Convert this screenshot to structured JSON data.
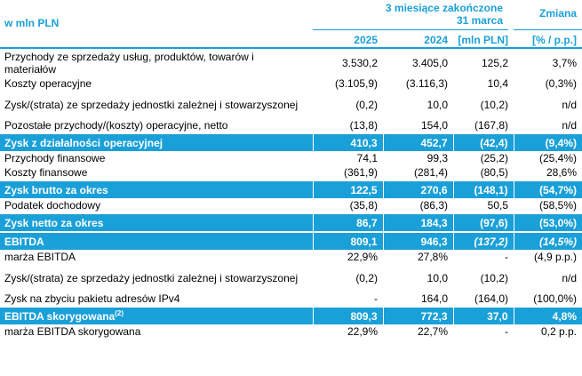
{
  "header": {
    "caption": "w mln PLN",
    "period_line1": "3 miesiące zakończone",
    "period_line2": "31 marca",
    "change_label": "Zmiana",
    "col_2025": "2025",
    "col_2024": "2024",
    "col_mln": "[mln PLN]",
    "col_pct": "[% / p.p.]"
  },
  "rows": [
    {
      "label": "Przychody ze sprzedaży usług, produktów, towarów i materiałów",
      "v2025": "3.530,2",
      "v2024": "3.405,0",
      "mln": "125,2",
      "pct": "3,7%"
    },
    {
      "label": "Koszty operacyjne",
      "v2025": "(3.105,9)",
      "v2024": "(3.116,3)",
      "mln": "10,4",
      "pct": "(0,3%)"
    },
    {
      "label": "Zysk/(strata) ze sprzedaży jednostki zależnej i stowarzyszonej",
      "v2025": "(0,2)",
      "v2024": "10,0",
      "mln": "(10,2)",
      "pct": "n/d"
    },
    {
      "label": "Pozostałe przychody/(koszty) operacyjne, netto",
      "v2025": "(13,8)",
      "v2024": "154,0",
      "mln": "(167,8)",
      "pct": "n/d"
    },
    {
      "label": "Zysk z działalności operacyjnej",
      "v2025": "410,3",
      "v2024": "452,7",
      "mln": "(42,4)",
      "pct": "(9,4%)"
    },
    {
      "label": "Przychody finansowe",
      "v2025": "74,1",
      "v2024": "99,3",
      "mln": "(25,2)",
      "pct": "(25,4%)"
    },
    {
      "label": "Koszty finansowe",
      "v2025": "(361,9)",
      "v2024": "(281,4)",
      "mln": "(80,5)",
      "pct": "28,6%"
    },
    {
      "label": "Zysk brutto za okres",
      "v2025": "122,5",
      "v2024": "270,6",
      "mln": "(148,1)",
      "pct": "(54,7%)"
    },
    {
      "label": "Podatek dochodowy",
      "v2025": "(35,8)",
      "v2024": "(86,3)",
      "mln": "50,5",
      "pct": "(58,5%)"
    },
    {
      "label": "Zysk netto za okres",
      "v2025": "86,7",
      "v2024": "184,3",
      "mln": "(97,6)",
      "pct": "(53,0%)"
    },
    {
      "label": "EBITDA",
      "v2025": "809,1",
      "v2024": "946,3",
      "mln": "(137,2)",
      "pct": "(14,5%)"
    },
    {
      "label": "marża EBITDA",
      "v2025": "22,9%",
      "v2024": "27,8%",
      "mln": "-",
      "pct": "(4,9 p.p.)"
    },
    {
      "label": "Zysk/(strata) ze sprzedaży jednostki zależnej i stowarzyszonej",
      "v2025": "(0,2)",
      "v2024": "10,0",
      "mln": "(10,2)",
      "pct": "n/d"
    },
    {
      "label": "Zysk na zbyciu pakietu adresów IPv4",
      "v2025": "-",
      "v2024": "164,0",
      "mln": "(164,0)",
      "pct": "(100,0%)"
    },
    {
      "label": "EBITDA skorygowana",
      "label_sup": "(2)",
      "v2025": "809,3",
      "v2024": "772,3",
      "mln": "37,0",
      "pct": "4,8%"
    },
    {
      "label": "marża EBITDA skorygowana",
      "v2025": "22,9%",
      "v2024": "22,7%",
      "mln": "-",
      "pct": "0,2 p.p."
    }
  ],
  "colors": {
    "accent": "#1aa0d9",
    "highlight_text": "#ffffff"
  }
}
